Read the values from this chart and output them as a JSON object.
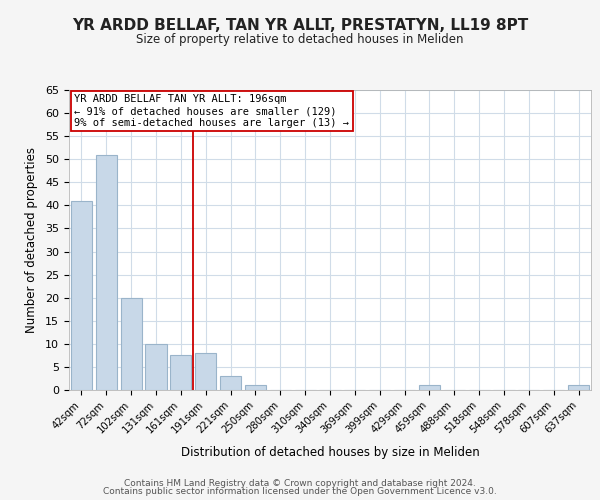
{
  "title": "YR ARDD BELLAF, TAN YR ALLT, PRESTATYN, LL19 8PT",
  "subtitle": "Size of property relative to detached houses in Meliden",
  "xlabel": "Distribution of detached houses by size in Meliden",
  "ylabel": "Number of detached properties",
  "bar_labels": [
    "42sqm",
    "72sqm",
    "102sqm",
    "131sqm",
    "161sqm",
    "191sqm",
    "221sqm",
    "250sqm",
    "280sqm",
    "310sqm",
    "340sqm",
    "369sqm",
    "399sqm",
    "429sqm",
    "459sqm",
    "488sqm",
    "518sqm",
    "548sqm",
    "578sqm",
    "607sqm",
    "637sqm"
  ],
  "bar_values": [
    41,
    51,
    20,
    10,
    7.5,
    8,
    3,
    1,
    0,
    0,
    0,
    0,
    0,
    0,
    1,
    0,
    0,
    0,
    0,
    0,
    1
  ],
  "bar_color": "#c8d8e8",
  "bar_edge_color": "#9ab4ca",
  "reference_line_color": "#cc0000",
  "ylim": [
    0,
    65
  ],
  "yticks": [
    0,
    5,
    10,
    15,
    20,
    25,
    30,
    35,
    40,
    45,
    50,
    55,
    60,
    65
  ],
  "annotation_title": "YR ARDD BELLAF TAN YR ALLT: 196sqm",
  "annotation_line1": "← 91% of detached houses are smaller (129)",
  "annotation_line2": "9% of semi-detached houses are larger (13) →",
  "footer_line1": "Contains HM Land Registry data © Crown copyright and database right 2024.",
  "footer_line2": "Contains public sector information licensed under the Open Government Licence v3.0.",
  "background_color": "#f5f5f5",
  "plot_background_color": "#ffffff",
  "grid_color": "#d0dce8"
}
